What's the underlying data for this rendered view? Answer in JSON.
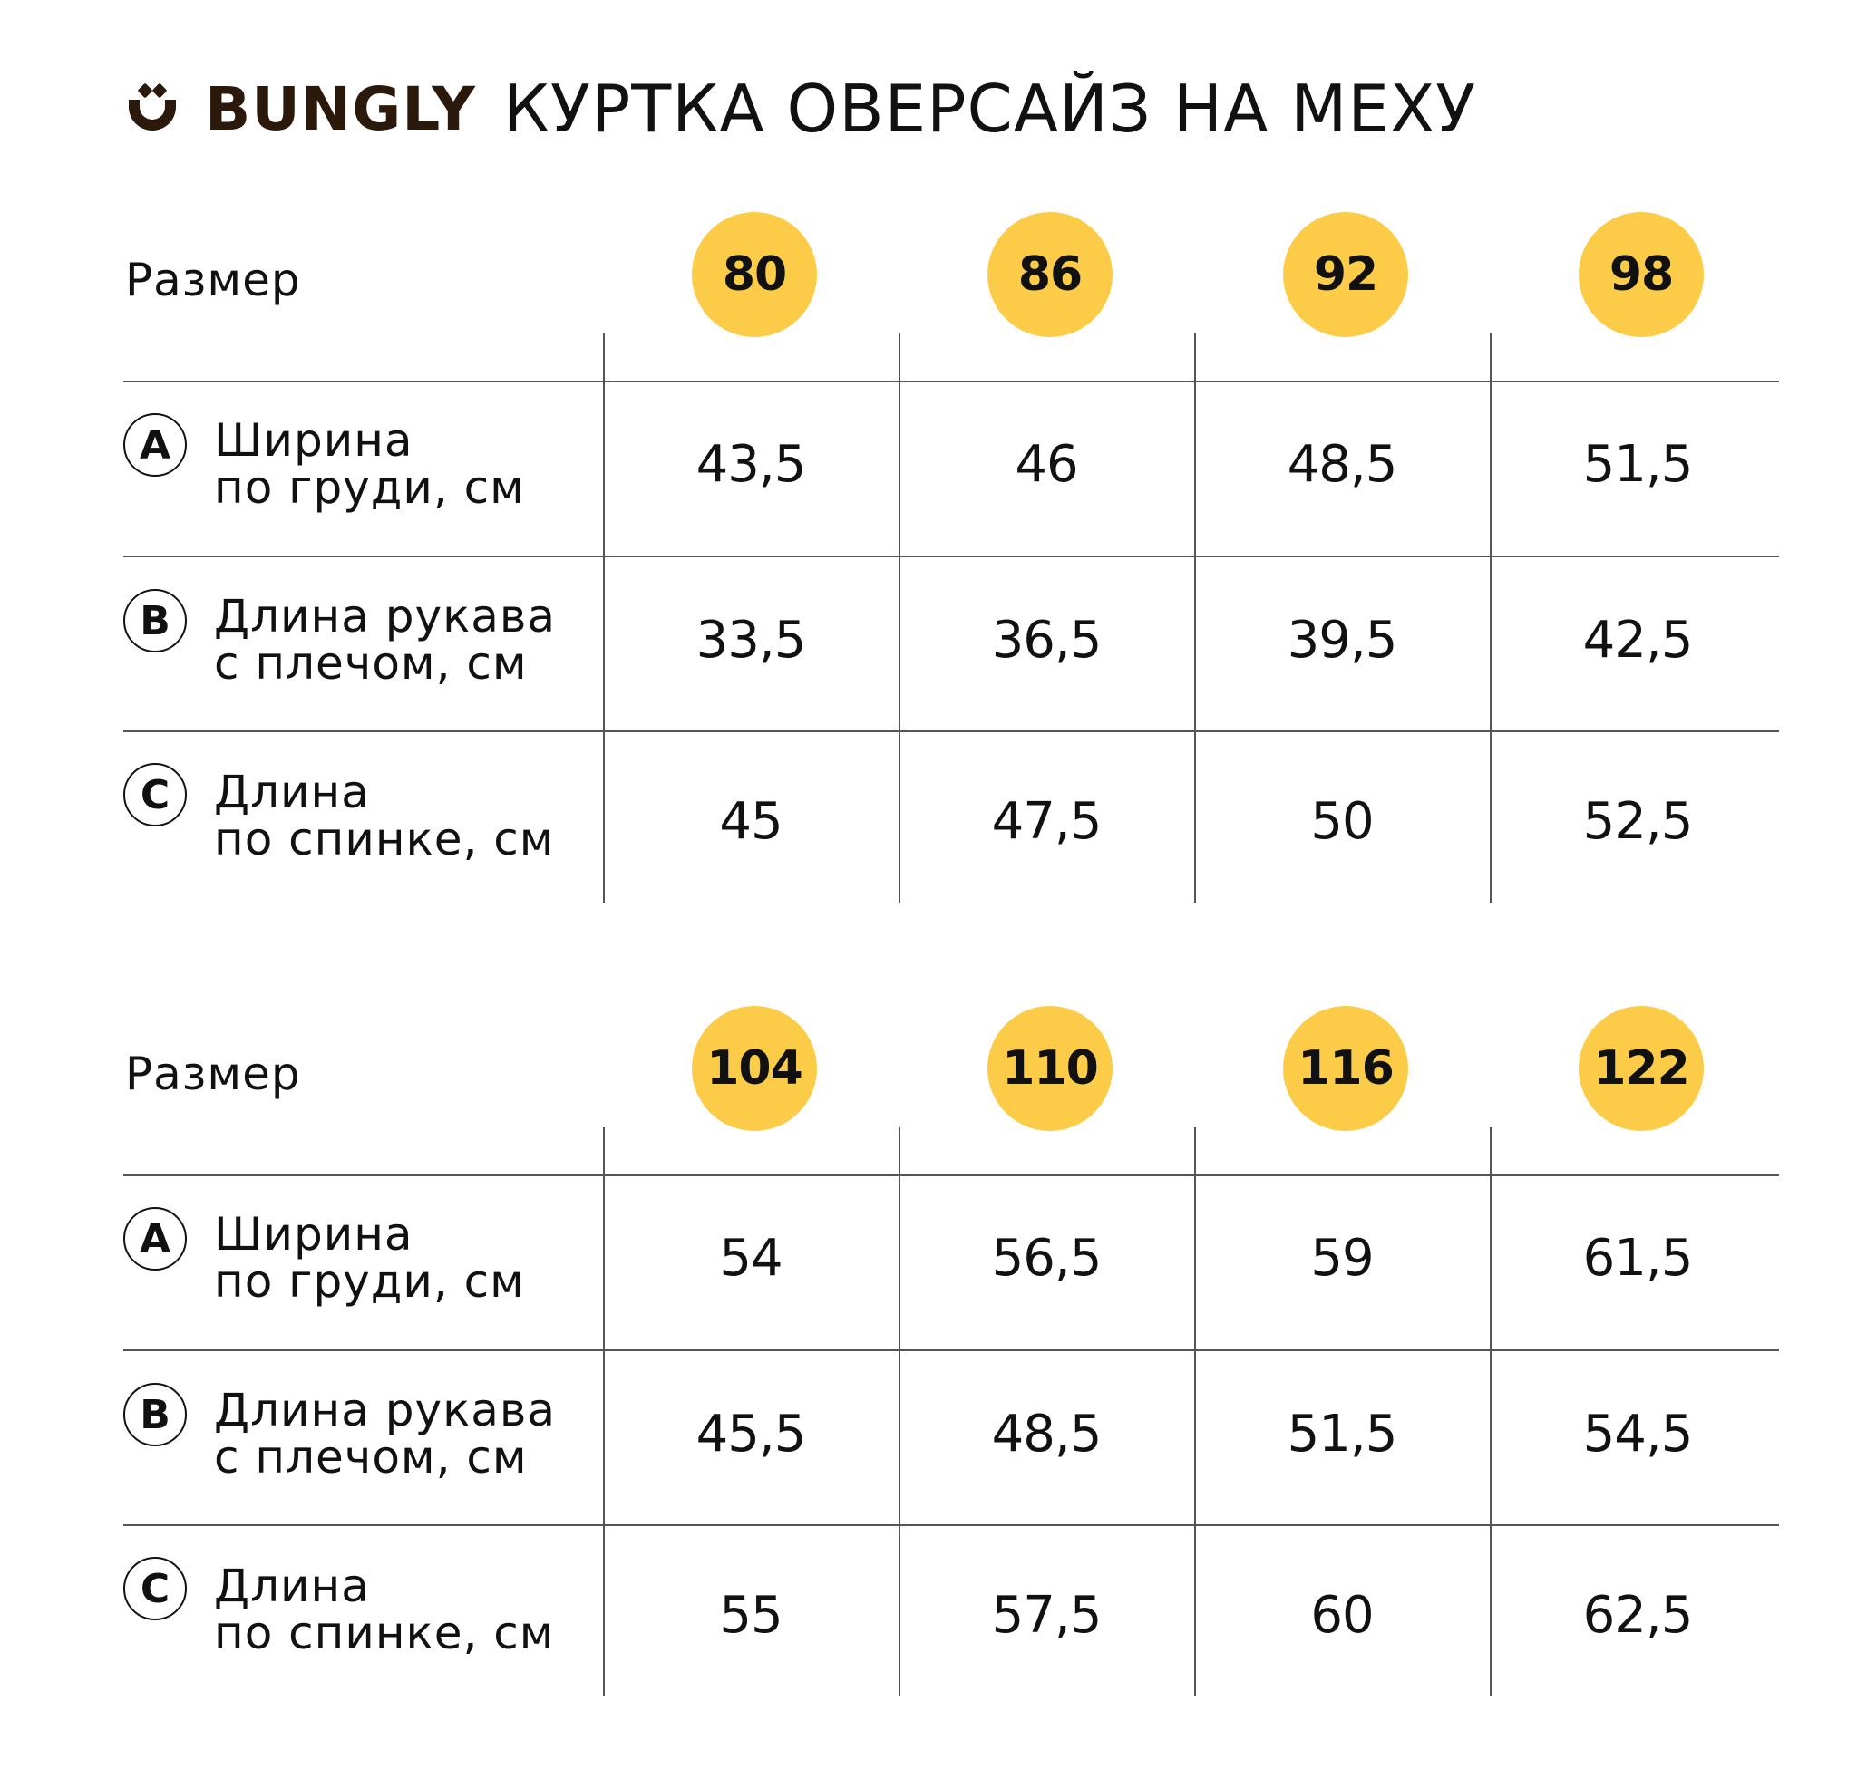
{
  "brand": {
    "name": "BUNGLY",
    "color": "#2b1a0c"
  },
  "product_title": "КУРТКА ОВЕРСАЙЗ НА МЕХУ",
  "accent_color": "#fccc48",
  "tables": [
    {
      "size_label": "Размер",
      "sizes": [
        "80",
        "86",
        "92",
        "98"
      ],
      "rows": [
        {
          "letter": "A",
          "label_line1": "Ширина",
          "label_line2": "по груди, см",
          "values": [
            "43,5",
            "46",
            "48,5",
            "51,5"
          ]
        },
        {
          "letter": "B",
          "label_line1": "Длина рукава",
          "label_line2": "с плечом, см",
          "values": [
            "33,5",
            "36,5",
            "39,5",
            "42,5"
          ]
        },
        {
          "letter": "C",
          "label_line1": "Длина",
          "label_line2": "по спинке, см",
          "values": [
            "45",
            "47,5",
            "50",
            "52,5"
          ]
        }
      ]
    },
    {
      "size_label": "Размер",
      "sizes": [
        "104",
        "110",
        "116",
        "122"
      ],
      "rows": [
        {
          "letter": "A",
          "label_line1": "Ширина",
          "label_line2": "по груди, см",
          "values": [
            "54",
            "56,5",
            "59",
            "61,5"
          ]
        },
        {
          "letter": "B",
          "label_line1": "Длина рукава",
          "label_line2": "с плечом, см",
          "values": [
            "45,5",
            "48,5",
            "51,5",
            "54,5"
          ]
        },
        {
          "letter": "C",
          "label_line1": "Длина",
          "label_line2": "по спинке, см",
          "values": [
            "55",
            "57,5",
            "60",
            "62,5"
          ]
        }
      ]
    }
  ]
}
